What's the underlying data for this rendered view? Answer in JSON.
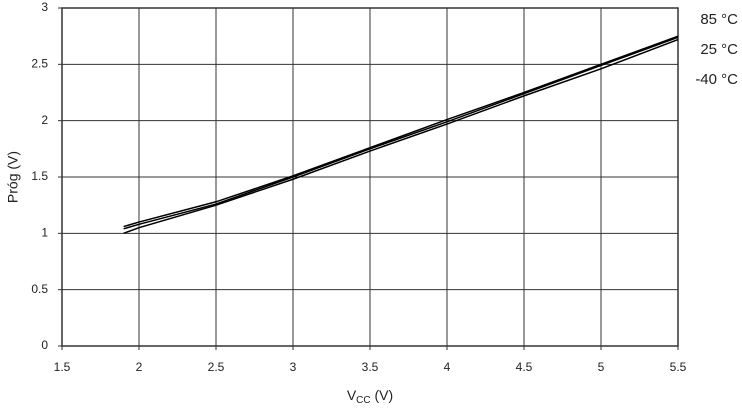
{
  "chart_data": {
    "type": "line",
    "xlabel": [
      "V",
      "CC",
      " (V)"
    ],
    "ylabel": "Próg (V)",
    "x": [
      1.9,
      2,
      2.5,
      3,
      3.5,
      4,
      4.5,
      5,
      5.5
    ],
    "series": [
      {
        "name": "85 °C",
        "color": "#000000",
        "values": [
          1.06,
          1.1,
          1.28,
          1.51,
          1.76,
          2.01,
          2.25,
          2.5,
          2.75
        ]
      },
      {
        "name": "25 °C",
        "color": "#000000",
        "values": [
          1.04,
          1.08,
          1.26,
          1.5,
          1.75,
          1.99,
          2.24,
          2.49,
          2.74
        ]
      },
      {
        "name": "-40 °C",
        "color": "#000000",
        "values": [
          1.0,
          1.05,
          1.25,
          1.48,
          1.73,
          1.97,
          2.22,
          2.46,
          2.72
        ]
      }
    ],
    "xlim": [
      1.5,
      5.5
    ],
    "xticks": [
      1.5,
      2,
      2.5,
      3,
      3.5,
      4,
      4.5,
      5,
      5.5
    ],
    "ylim": [
      0,
      3
    ],
    "yticks": [
      0,
      0.5,
      1,
      1.5,
      2,
      2.5,
      3
    ],
    "grid": true
  }
}
